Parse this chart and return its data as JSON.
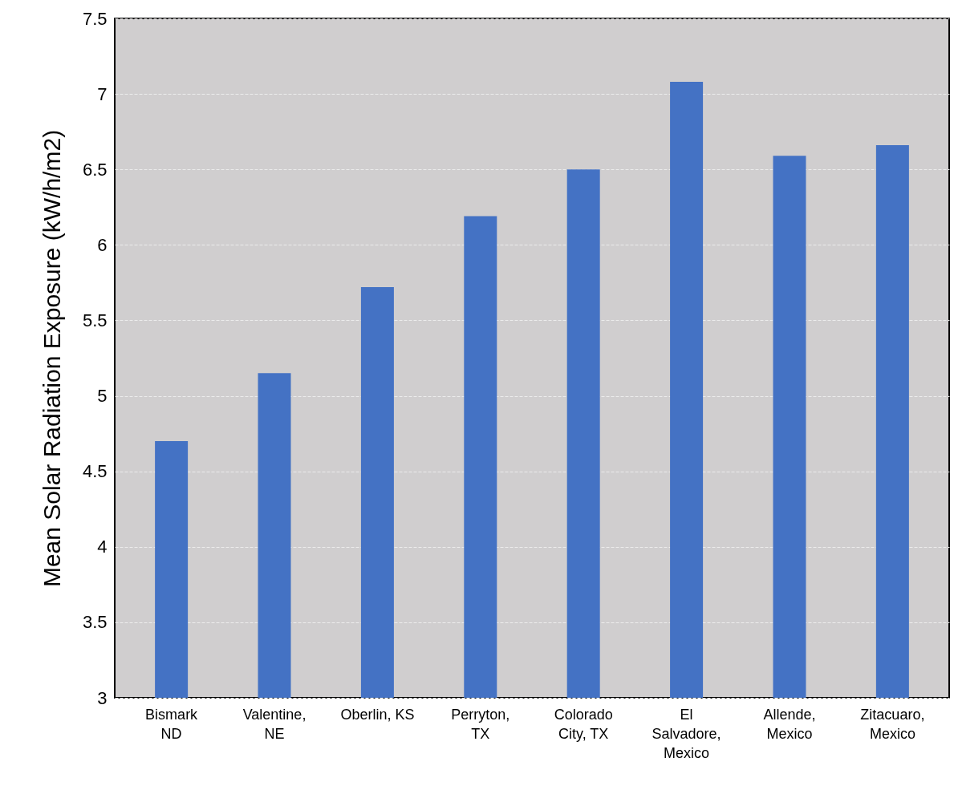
{
  "chart_data": {
    "type": "bar",
    "ylabel": "Mean Solar Radiation Exposure (kW/h/m2)",
    "categories": [
      "Bismark\nND",
      "Valentine,\nNE",
      "Oberlin, KS",
      "Perryton,\nTX",
      "Colorado\nCity, TX",
      "El\nSalvadore,\nMexico",
      "Allende,\nMexico",
      "Zitacuaro,\nMexico"
    ],
    "values": [
      4.7,
      5.15,
      5.72,
      6.19,
      6.5,
      7.08,
      6.59,
      6.66
    ],
    "color": "#4472c4",
    "ylim": [
      3,
      7.5
    ],
    "yticks": [
      3,
      3.5,
      4,
      4.5,
      5,
      5.5,
      6,
      6.5,
      7,
      7.5
    ],
    "grid": "y"
  }
}
